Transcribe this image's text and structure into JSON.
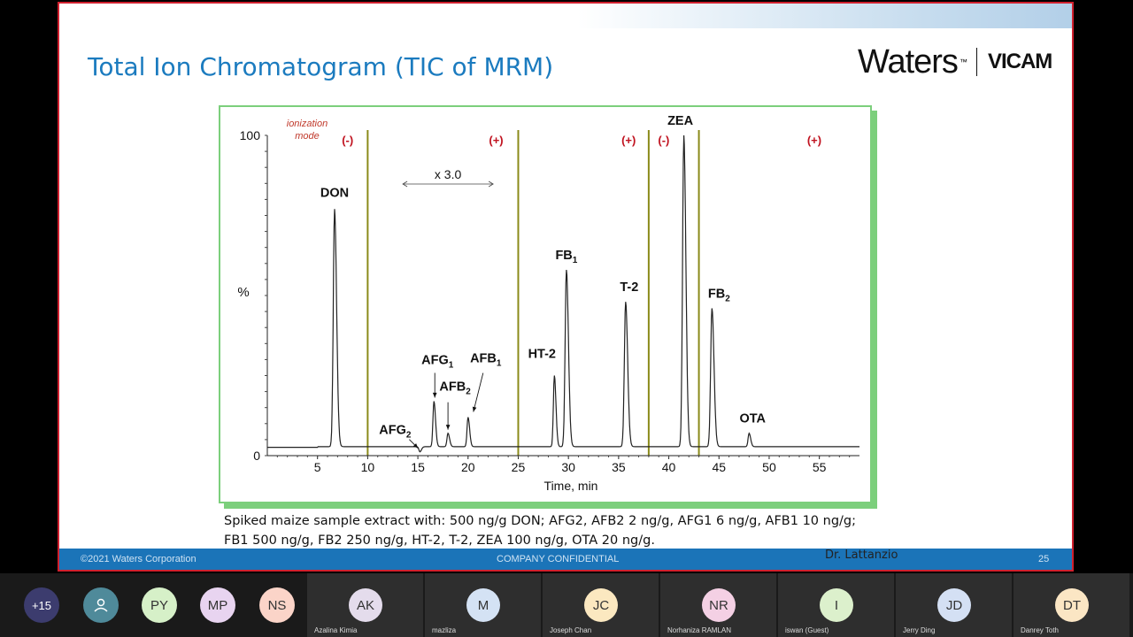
{
  "slide": {
    "title": "Total Ion Chromatogram (TIC of MRM)",
    "logo": {
      "brand1": "Waters",
      "tm": "™",
      "brand2": "VICAM"
    },
    "caption_line1": "Spiked maize sample extract with: 500 ng/g DON; AFG2, AFB2 2 ng/g, AFG1 6 ng/g, AFB1 10 ng/g;",
    "caption_line2": "FB1 500 ng/g, FB2 250 ng/g, HT-2, T-2, ZEA 100 ng/g, OTA 20 ng/g.",
    "footer": {
      "copyright": "©2021 Waters Corporation",
      "confidential": "COMPANY CONFIDENTIAL",
      "page": "25"
    },
    "presenter": "Dr. Lattanzio"
  },
  "chart_data": {
    "type": "line",
    "xlabel": "Time, min",
    "ylabel": "%",
    "xlim": [
      0,
      59
    ],
    "ylim": [
      0,
      100
    ],
    "x_ticks": [
      5,
      10,
      15,
      20,
      25,
      30,
      35,
      40,
      45,
      50,
      55
    ],
    "y_ticks": [
      0,
      100
    ],
    "ionization_label": "ionization mode",
    "mode_dividers": [
      10,
      25,
      38,
      43
    ],
    "modes": [
      {
        "label": "(-)",
        "x": 8
      },
      {
        "label": "(+)",
        "x": 22.8
      },
      {
        "label": "(+)",
        "x": 36
      },
      {
        "label": "(-)",
        "x": 39.5
      },
      {
        "label": "(+)",
        "x": 54.5
      }
    ],
    "scale_note": {
      "label": "x 3.0",
      "x_start": 13.5,
      "x_end": 22.5
    },
    "baseline": 2.8,
    "peaks": [
      {
        "name": "DON",
        "sub": "",
        "rt": 6.7,
        "height": 77
      },
      {
        "name": "AFG",
        "sub": "2",
        "rt": 15.2,
        "height": 1.2
      },
      {
        "name": "AFG",
        "sub": "1",
        "rt": 16.6,
        "height": 17
      },
      {
        "name": "AFB",
        "sub": "2",
        "rt": 18.0,
        "height": 7
      },
      {
        "name": "AFB",
        "sub": "1",
        "rt": 20.0,
        "height": 12
      },
      {
        "name": "HT-2",
        "sub": "",
        "rt": 28.6,
        "height": 25
      },
      {
        "name": "FB",
        "sub": "1",
        "rt": 29.8,
        "height": 58
      },
      {
        "name": "T-2",
        "sub": "",
        "rt": 35.7,
        "height": 48
      },
      {
        "name": "ZEA",
        "sub": "",
        "rt": 41.5,
        "height": 100
      },
      {
        "name": "FB",
        "sub": "2",
        "rt": 44.3,
        "height": 46
      },
      {
        "name": "OTA",
        "sub": "",
        "rt": 48.0,
        "height": 7
      }
    ]
  },
  "participants": {
    "overflow": "+15",
    "small": [
      {
        "initials": "",
        "icon": "person-icon",
        "color": "#4f8a9a"
      },
      {
        "initials": "PY",
        "color": "#d6f0c8"
      },
      {
        "initials": "MP",
        "color": "#e8d4f0"
      },
      {
        "initials": "NS",
        "color": "#fbd4c8"
      }
    ],
    "tiles": [
      {
        "initials": "AK",
        "name": "Azalina Kimia",
        "color": "#e4dcec"
      },
      {
        "initials": "M",
        "name": "mazliza",
        "color": "#d4e2f4"
      },
      {
        "initials": "JC",
        "name": "Joseph Chan",
        "color": "#fbe8c0"
      },
      {
        "initials": "NR",
        "name": "Norhaniza RAMLAN",
        "color": "#f4d0e4"
      },
      {
        "initials": "I",
        "name": "iswan (Guest)",
        "color": "#dcf0cc"
      },
      {
        "initials": "JD",
        "name": "Jerry Ding",
        "color": "#d4e0f4"
      },
      {
        "initials": "DT",
        "name": "Danrey Toth",
        "color": "#fbe6c4"
      }
    ]
  }
}
